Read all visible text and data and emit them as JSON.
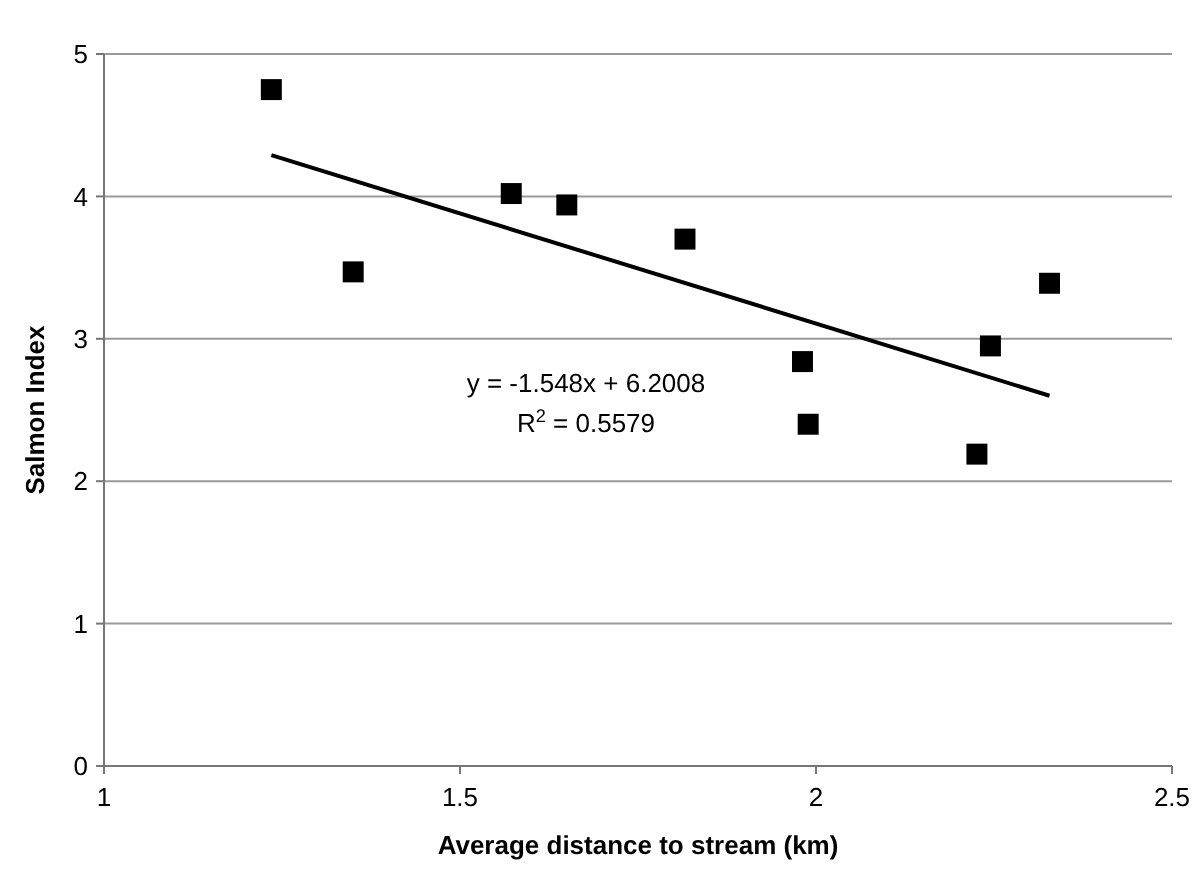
{
  "chart_data": {
    "type": "scatter",
    "xlabel": "Average distance to stream (km)",
    "ylabel": "Salmon Index",
    "xlim": [
      1,
      2.5
    ],
    "xticks": [
      1,
      1.5,
      2,
      2.5
    ],
    "ylim": [
      0,
      5
    ],
    "yticks": [
      0,
      1,
      2,
      3,
      4,
      5
    ],
    "grid": "y",
    "series": [
      {
        "color": "#000000",
        "marker": "square",
        "x": [
          1.235,
          1.35,
          1.572,
          1.65,
          1.816,
          1.981,
          1.989,
          2.226,
          2.245,
          2.328
        ],
        "values": [
          4.75,
          3.47,
          4.02,
          3.94,
          3.7,
          2.84,
          2.4,
          2.19,
          2.95,
          3.39
        ]
      },
      {
        "type": "line",
        "color": "#000000",
        "x": [
          1.235,
          2.328
        ],
        "values": [
          4.29,
          2.6
        ]
      }
    ],
    "annotations": [
      "y = -1.548x + 6.2008",
      "R$^{2}$ = 0.5579"
    ]
  }
}
